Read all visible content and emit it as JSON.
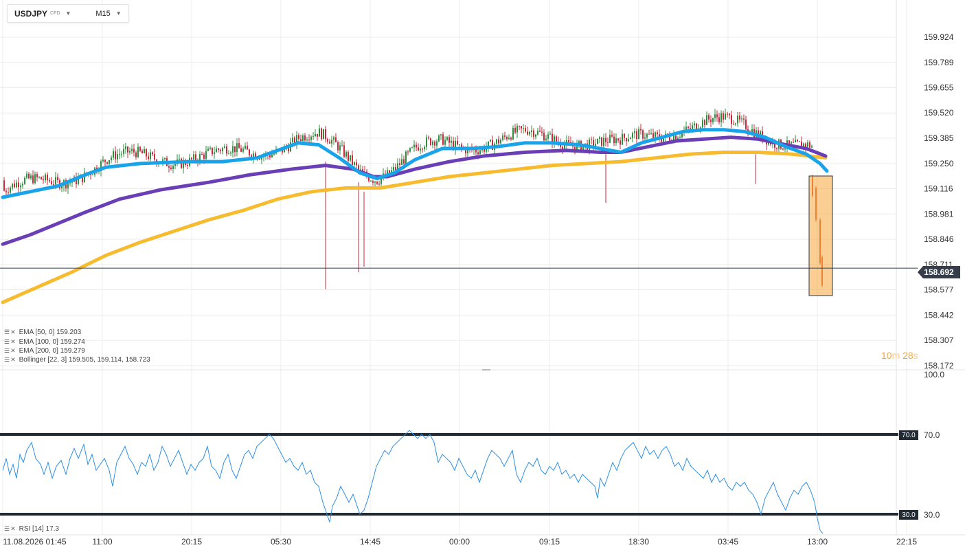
{
  "toolbar": {
    "symbol": "USDJPY",
    "instrument_type": "CFD",
    "timeframe": "M15"
  },
  "current_price": {
    "label": "158.692"
  },
  "countdown": {
    "minutes": "10",
    "m_unit": "m",
    "seconds": "28",
    "s_unit": "s"
  },
  "legends": {
    "ema50": "EMA [50, 0] 159.203",
    "ema100": "EMA [100, 0] 159.274",
    "ema200": "EMA [200, 0] 159.279",
    "bollinger": "Bollinger [22, 3] 159.505, 159.114, 158.723",
    "rsi": "RSI [14] 17.3"
  },
  "rsi_levels": {
    "upper": "70.0",
    "lower": "30.0",
    "top": "100.0"
  },
  "colors": {
    "ema50": "#1aa3e8",
    "ema100": "#6a3fb5",
    "ema200": "#f7bb2f",
    "rsi": "#2d8fe6",
    "bull": "#2f8f3f",
    "bear": "#c92a3c",
    "highlight": "#f7a53a"
  },
  "chart_data": {
    "type": "candlestick",
    "price_axis": {
      "ticks": [
        "159.924",
        "159.789",
        "159.655",
        "159.520",
        "159.385",
        "159.250",
        "159.116",
        "158.981",
        "158.846",
        "158.711",
        "158.577",
        "158.442",
        "158.307",
        "158.172"
      ],
      "range": [
        158.172,
        159.924
      ]
    },
    "time_axis": {
      "ticks": [
        "11.08.2026 01:45",
        "11:00",
        "20:15",
        "05:30",
        "14:45",
        "00:00",
        "09:15",
        "18:30",
        "03:45",
        "13:00",
        "22:15"
      ]
    },
    "last_price": 158.692,
    "ema50": [
      [
        0,
        159.07
      ],
      [
        40,
        159.1
      ],
      [
        80,
        159.13
      ],
      [
        120,
        159.19
      ],
      [
        150,
        159.23
      ],
      [
        200,
        159.25
      ],
      [
        270,
        159.26
      ],
      [
        320,
        159.26
      ],
      [
        370,
        159.28
      ],
      [
        400,
        159.32
      ],
      [
        430,
        159.36
      ],
      [
        460,
        159.35
      ],
      [
        490,
        159.28
      ],
      [
        520,
        159.2
      ],
      [
        545,
        159.17
      ],
      [
        570,
        159.2
      ],
      [
        600,
        159.27
      ],
      [
        640,
        159.33
      ],
      [
        680,
        159.33
      ],
      [
        720,
        159.34
      ],
      [
        760,
        159.36
      ],
      [
        800,
        159.36
      ],
      [
        840,
        159.35
      ],
      [
        870,
        159.33
      ],
      [
        900,
        159.31
      ],
      [
        930,
        159.36
      ],
      [
        960,
        159.39
      ],
      [
        990,
        159.42
      ],
      [
        1020,
        159.43
      ],
      [
        1050,
        159.43
      ],
      [
        1080,
        159.42
      ],
      [
        1110,
        159.39
      ],
      [
        1140,
        159.34
      ],
      [
        1170,
        159.3
      ],
      [
        1190,
        159.25
      ],
      [
        1200,
        159.21
      ]
    ],
    "ema100": [
      [
        0,
        158.82
      ],
      [
        40,
        158.87
      ],
      [
        80,
        158.93
      ],
      [
        120,
        158.99
      ],
      [
        170,
        159.06
      ],
      [
        230,
        159.11
      ],
      [
        300,
        159.15
      ],
      [
        360,
        159.19
      ],
      [
        420,
        159.22
      ],
      [
        470,
        159.24
      ],
      [
        510,
        159.22
      ],
      [
        540,
        159.18
      ],
      [
        560,
        159.18
      ],
      [
        600,
        159.22
      ],
      [
        650,
        159.26
      ],
      [
        700,
        159.29
      ],
      [
        760,
        159.31
      ],
      [
        820,
        159.32
      ],
      [
        870,
        159.31
      ],
      [
        900,
        159.31
      ],
      [
        940,
        159.34
      ],
      [
        980,
        159.37
      ],
      [
        1020,
        159.38
      ],
      [
        1060,
        159.39
      ],
      [
        1100,
        159.38
      ],
      [
        1140,
        159.35
      ],
      [
        1170,
        159.33
      ],
      [
        1198,
        159.29
      ]
    ],
    "ema200": [
      [
        0,
        158.51
      ],
      [
        50,
        158.59
      ],
      [
        100,
        158.67
      ],
      [
        150,
        158.76
      ],
      [
        200,
        158.83
      ],
      [
        250,
        158.89
      ],
      [
        300,
        158.95
      ],
      [
        350,
        159.0
      ],
      [
        400,
        159.06
      ],
      [
        450,
        159.1
      ],
      [
        500,
        159.12
      ],
      [
        550,
        159.12
      ],
      [
        600,
        159.15
      ],
      [
        650,
        159.18
      ],
      [
        700,
        159.2
      ],
      [
        750,
        159.22
      ],
      [
        800,
        159.24
      ],
      [
        850,
        159.25
      ],
      [
        900,
        159.26
      ],
      [
        950,
        159.28
      ],
      [
        1000,
        159.3
      ],
      [
        1050,
        159.31
      ],
      [
        1100,
        159.31
      ],
      [
        1150,
        159.3
      ],
      [
        1198,
        159.28
      ]
    ],
    "rsi": [
      [
        0,
        52
      ],
      [
        5,
        58
      ],
      [
        10,
        50
      ],
      [
        15,
        55
      ],
      [
        20,
        48
      ],
      [
        25,
        60
      ],
      [
        30,
        56
      ],
      [
        35,
        62
      ],
      [
        42,
        66
      ],
      [
        48,
        58
      ],
      [
        55,
        55
      ],
      [
        60,
        50
      ],
      [
        66,
        56
      ],
      [
        72,
        48
      ],
      [
        78,
        54
      ],
      [
        85,
        57
      ],
      [
        92,
        50
      ],
      [
        98,
        58
      ],
      [
        104,
        63
      ],
      [
        110,
        58
      ],
      [
        118,
        65
      ],
      [
        124,
        55
      ],
      [
        130,
        60
      ],
      [
        136,
        52
      ],
      [
        142,
        55
      ],
      [
        148,
        58
      ],
      [
        155,
        52
      ],
      [
        160,
        44
      ],
      [
        166,
        56
      ],
      [
        172,
        60
      ],
      [
        178,
        64
      ],
      [
        184,
        58
      ],
      [
        190,
        55
      ],
      [
        196,
        50
      ],
      [
        202,
        56
      ],
      [
        208,
        54
      ],
      [
        214,
        60
      ],
      [
        220,
        52
      ],
      [
        226,
        56
      ],
      [
        232,
        64
      ],
      [
        238,
        60
      ],
      [
        244,
        54
      ],
      [
        250,
        58
      ],
      [
        256,
        62
      ],
      [
        262,
        56
      ],
      [
        268,
        50
      ],
      [
        274,
        55
      ],
      [
        280,
        52
      ],
      [
        286,
        56
      ],
      [
        292,
        58
      ],
      [
        298,
        64
      ],
      [
        304,
        54
      ],
      [
        310,
        52
      ],
      [
        316,
        48
      ],
      [
        322,
        56
      ],
      [
        328,
        60
      ],
      [
        334,
        52
      ],
      [
        340,
        48
      ],
      [
        346,
        54
      ],
      [
        352,
        60
      ],
      [
        358,
        62
      ],
      [
        364,
        58
      ],
      [
        370,
        64
      ],
      [
        376,
        66
      ],
      [
        382,
        68
      ],
      [
        388,
        70
      ],
      [
        394,
        68
      ],
      [
        400,
        64
      ],
      [
        406,
        60
      ],
      [
        412,
        56
      ],
      [
        418,
        58
      ],
      [
        424,
        54
      ],
      [
        430,
        52
      ],
      [
        436,
        56
      ],
      [
        442,
        50
      ],
      [
        448,
        52
      ],
      [
        454,
        46
      ],
      [
        460,
        44
      ],
      [
        466,
        36
      ],
      [
        472,
        30
      ],
      [
        476,
        26
      ],
      [
        480,
        34
      ],
      [
        486,
        38
      ],
      [
        492,
        44
      ],
      [
        498,
        40
      ],
      [
        504,
        36
      ],
      [
        510,
        40
      ],
      [
        516,
        34
      ],
      [
        520,
        30
      ],
      [
        526,
        32
      ],
      [
        532,
        38
      ],
      [
        538,
        46
      ],
      [
        544,
        54
      ],
      [
        550,
        58
      ],
      [
        556,
        62
      ],
      [
        562,
        60
      ],
      [
        568,
        64
      ],
      [
        574,
        66
      ],
      [
        580,
        68
      ],
      [
        586,
        70
      ],
      [
        592,
        72
      ],
      [
        598,
        70
      ],
      [
        604,
        68
      ],
      [
        610,
        70
      ],
      [
        616,
        68
      ],
      [
        622,
        70
      ],
      [
        628,
        66
      ],
      [
        634,
        56
      ],
      [
        640,
        60
      ],
      [
        646,
        58
      ],
      [
        652,
        56
      ],
      [
        658,
        52
      ],
      [
        664,
        58
      ],
      [
        670,
        54
      ],
      [
        676,
        50
      ],
      [
        682,
        48
      ],
      [
        688,
        52
      ],
      [
        694,
        46
      ],
      [
        700,
        52
      ],
      [
        706,
        58
      ],
      [
        712,
        62
      ],
      [
        718,
        60
      ],
      [
        724,
        58
      ],
      [
        730,
        54
      ],
      [
        736,
        58
      ],
      [
        742,
        62
      ],
      [
        748,
        50
      ],
      [
        754,
        46
      ],
      [
        760,
        52
      ],
      [
        766,
        56
      ],
      [
        772,
        54
      ],
      [
        778,
        58
      ],
      [
        784,
        52
      ],
      [
        790,
        50
      ],
      [
        796,
        54
      ],
      [
        802,
        52
      ],
      [
        808,
        56
      ],
      [
        814,
        50
      ],
      [
        820,
        52
      ],
      [
        826,
        48
      ],
      [
        832,
        50
      ],
      [
        838,
        46
      ],
      [
        844,
        50
      ],
      [
        850,
        48
      ],
      [
        856,
        46
      ],
      [
        862,
        44
      ],
      [
        866,
        38
      ],
      [
        870,
        48
      ],
      [
        876,
        44
      ],
      [
        882,
        50
      ],
      [
        888,
        56
      ],
      [
        894,
        52
      ],
      [
        900,
        58
      ],
      [
        906,
        62
      ],
      [
        912,
        64
      ],
      [
        918,
        66
      ],
      [
        924,
        62
      ],
      [
        930,
        58
      ],
      [
        936,
        64
      ],
      [
        942,
        60
      ],
      [
        948,
        62
      ],
      [
        954,
        58
      ],
      [
        960,
        62
      ],
      [
        966,
        64
      ],
      [
        972,
        60
      ],
      [
        978,
        54
      ],
      [
        984,
        56
      ],
      [
        990,
        52
      ],
      [
        996,
        58
      ],
      [
        1002,
        54
      ],
      [
        1008,
        52
      ],
      [
        1014,
        50
      ],
      [
        1020,
        48
      ],
      [
        1026,
        52
      ],
      [
        1032,
        46
      ],
      [
        1038,
        50
      ],
      [
        1044,
        46
      ],
      [
        1050,
        48
      ],
      [
        1056,
        44
      ],
      [
        1062,
        42
      ],
      [
        1068,
        46
      ],
      [
        1074,
        44
      ],
      [
        1080,
        46
      ],
      [
        1086,
        42
      ],
      [
        1092,
        40
      ],
      [
        1098,
        36
      ],
      [
        1104,
        30
      ],
      [
        1110,
        38
      ],
      [
        1116,
        42
      ],
      [
        1122,
        46
      ],
      [
        1128,
        40
      ],
      [
        1134,
        36
      ],
      [
        1140,
        32
      ],
      [
        1146,
        38
      ],
      [
        1152,
        42
      ],
      [
        1158,
        40
      ],
      [
        1164,
        44
      ],
      [
        1170,
        46
      ],
      [
        1176,
        42
      ],
      [
        1182,
        36
      ],
      [
        1186,
        28
      ],
      [
        1190,
        22
      ],
      [
        1194,
        17
      ]
    ]
  }
}
